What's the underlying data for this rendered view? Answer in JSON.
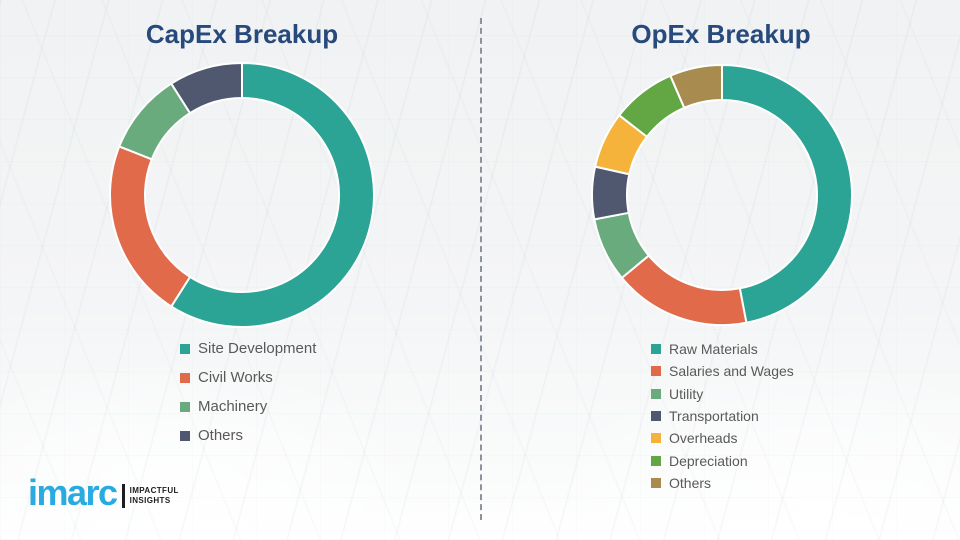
{
  "theme": {
    "title_color": "#27497B",
    "legend_text_color": "#595959",
    "segment_gap_color": "#ffffff",
    "divider_color": "#8d939c",
    "background": "#f4f5f6"
  },
  "divider": {
    "style": "dashed",
    "orientation": "vertical"
  },
  "logo": {
    "brand": "imarc",
    "brand_color": "#29ABE2",
    "tagline_line1": "IMPACTFUL",
    "tagline_line2": "INSIGHTS"
  },
  "chart_data": [
    {
      "type": "pie",
      "subtype": "donut",
      "title": "CapEx Breakup",
      "labels": [
        "Site Development",
        "Civil Works",
        "Machinery",
        "Others"
      ],
      "values": [
        59,
        22,
        10,
        9
      ],
      "values_are": "estimated_percent",
      "colors": [
        "#2BA495",
        "#E16A4B",
        "#6AAB7D",
        "#50586F"
      ],
      "start_angle_deg": 0,
      "direction": "clockwise",
      "legend_position": "below-left",
      "data_labels_shown": false
    },
    {
      "type": "pie",
      "subtype": "donut",
      "title": "OpEx Breakup",
      "labels": [
        "Raw Materials",
        "Salaries and Wages",
        "Utility",
        "Transportation",
        "Overheads",
        "Depreciation",
        "Others"
      ],
      "values": [
        47,
        17,
        8,
        6.5,
        7,
        8,
        6.5
      ],
      "values_are": "estimated_percent",
      "colors": [
        "#2BA495",
        "#E16A4B",
        "#6AAB7D",
        "#50586F",
        "#F5B33C",
        "#62A744",
        "#A78B4F"
      ],
      "start_angle_deg": 0,
      "direction": "clockwise",
      "legend_position": "below-left",
      "data_labels_shown": false
    }
  ]
}
